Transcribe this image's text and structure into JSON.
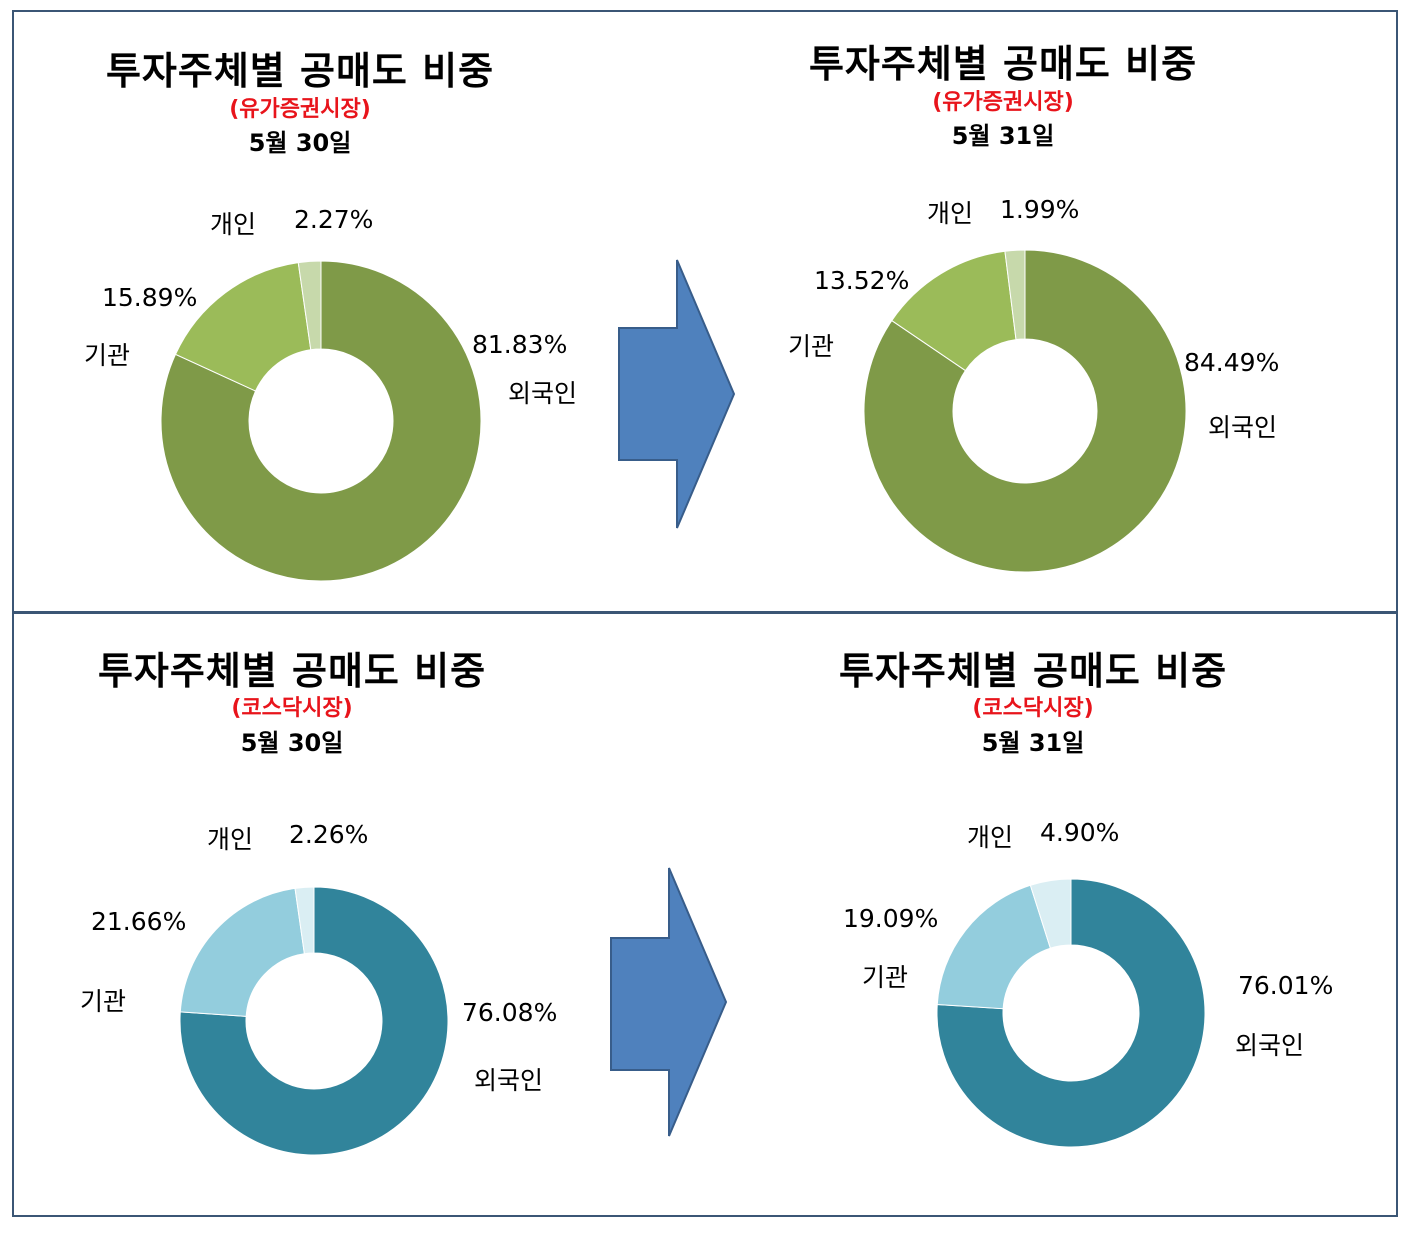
{
  "colors": {
    "kospi": [
      "#7f9a48",
      "#9bbb59",
      "#c7d9ab"
    ],
    "kosdaq": [
      "#31849b",
      "#93cddd",
      "#daeef3"
    ],
    "arrow_fill": "#4f81bd",
    "arrow_stroke": "#385d8a",
    "market_label": "#e8141b",
    "frame": "#3b5675"
  },
  "icons": {
    "arrow": "right-block-arrow"
  },
  "panels": [
    {
      "title": "투자주체별 공매도 비중",
      "market": "(유가증권시장)",
      "date": "5월 30일",
      "labels": {
        "foreign": "외국인",
        "institution": "기관",
        "individual": "개인"
      },
      "values": {
        "foreign": "81.83%",
        "institution": "15.89%",
        "individual": "2.27%"
      }
    },
    {
      "title": "투자주체별 공매도 비중",
      "market": "(유가증권시장)",
      "date": "5월 31일",
      "labels": {
        "foreign": "외국인",
        "institution": "기관",
        "individual": "개인"
      },
      "values": {
        "foreign": "84.49%",
        "institution": "13.52%",
        "individual": "1.99%"
      }
    },
    {
      "title": "투자주체별 공매도 비중",
      "market": "(코스닥시장)",
      "date": "5월 30일",
      "labels": {
        "foreign": "외국인",
        "institution": "기관",
        "individual": "개인"
      },
      "values": {
        "foreign": "76.08%",
        "institution": "21.66%",
        "individual": "2.26%"
      }
    },
    {
      "title": "투자주체별 공매도 비중",
      "market": "(코스닥시장)",
      "date": "5월 31일",
      "labels": {
        "foreign": "외국인",
        "institution": "기관",
        "individual": "개인"
      },
      "values": {
        "foreign": "76.01%",
        "institution": "19.09%",
        "individual": "4.90%"
      }
    }
  ],
  "chart_data": [
    {
      "type": "pie",
      "title": "투자주체별 공매도 비중",
      "subtitle": "(유가증권시장) 5월 30일",
      "categories": [
        "외국인",
        "기관",
        "개인"
      ],
      "values": [
        81.83,
        15.89,
        2.27
      ],
      "unit": "%"
    },
    {
      "type": "pie",
      "title": "투자주체별 공매도 비중",
      "subtitle": "(유가증권시장) 5월 31일",
      "categories": [
        "외국인",
        "기관",
        "개인"
      ],
      "values": [
        84.49,
        13.52,
        1.99
      ],
      "unit": "%"
    },
    {
      "type": "pie",
      "title": "투자주체별 공매도 비중",
      "subtitle": "(코스닥시장) 5월 30일",
      "categories": [
        "외국인",
        "기관",
        "개인"
      ],
      "values": [
        76.08,
        21.66,
        2.26
      ],
      "unit": "%"
    },
    {
      "type": "pie",
      "title": "투자주체별 공매도 비중",
      "subtitle": "(코스닥시장) 5월 31일",
      "categories": [
        "외국인",
        "기관",
        "개인"
      ],
      "values": [
        76.01,
        19.09,
        4.9
      ],
      "unit": "%"
    }
  ]
}
